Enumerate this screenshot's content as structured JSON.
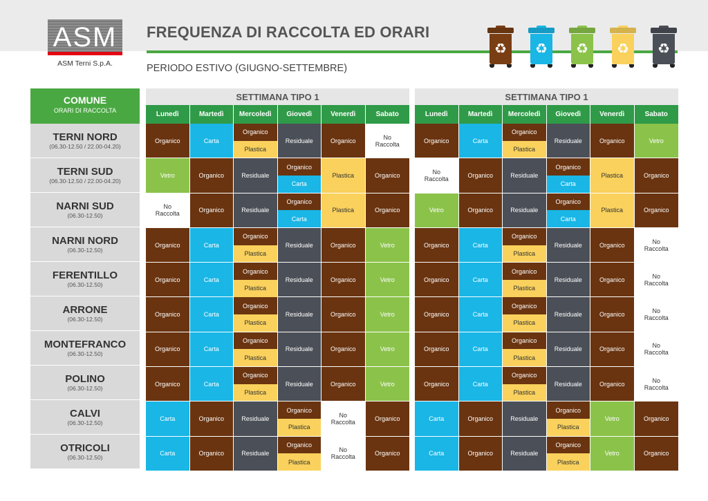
{
  "header": {
    "logo_text": "ASM",
    "company": "ASM Terni S.p.A.",
    "title": "FREQUENZA DI RACCOLTA ED ORARI",
    "subtitle": "PERIODO ESTIVO (GIUGNO-SETTEMBRE)"
  },
  "bins": [
    {
      "name": "organico",
      "color": "#7a3e14",
      "icon": "recycle-icon"
    },
    {
      "name": "carta",
      "color": "#19b6e6",
      "icon": "recycle-icon"
    },
    {
      "name": "vetro",
      "color": "#8bc34a",
      "icon": "recycle-icon"
    },
    {
      "name": "plastica",
      "color": "#f9d15c",
      "icon": "recycle-icon"
    },
    {
      "name": "residuale",
      "color": "#4b4f57",
      "icon": "recycle-icon"
    }
  ],
  "colors": {
    "Organico": "#6a3410",
    "Carta": "#19b6e6",
    "Residuale": "#4b4f57",
    "Plastica": "#f9d15c",
    "Vetro": "#8bc34a",
    "No Raccolta": "#ffffff",
    "header_green": "#4aa842",
    "day_green": "#2f9a48"
  },
  "comune_header": {
    "title": "COMUNE",
    "subtitle": "ORARI DI RACCOLTA"
  },
  "days": [
    "Lunedì",
    "Martedì",
    "Mercoledì",
    "Giovedì",
    "Venerdì",
    "Sabato"
  ],
  "weeks": [
    {
      "title": "SETTIMANA TIPO 1",
      "rows": [
        [
          [
            "Organico"
          ],
          [
            "Carta"
          ],
          [
            "Organico",
            "Plastica"
          ],
          [
            "Residuale"
          ],
          [
            "Organico"
          ],
          [
            "No Raccolta"
          ]
        ],
        [
          [
            "Vetro"
          ],
          [
            "Organico"
          ],
          [
            "Residuale"
          ],
          [
            "Organico",
            "Carta"
          ],
          [
            "Plastica"
          ],
          [
            "Organico"
          ]
        ],
        [
          [
            "No Raccolta"
          ],
          [
            "Organico"
          ],
          [
            "Residuale"
          ],
          [
            "Organico",
            "Carta"
          ],
          [
            "Plastica"
          ],
          [
            "Organico"
          ]
        ],
        [
          [
            "Organico"
          ],
          [
            "Carta"
          ],
          [
            "Organico",
            "Plastica"
          ],
          [
            "Residuale"
          ],
          [
            "Organico"
          ],
          [
            "Vetro"
          ]
        ],
        [
          [
            "Organico"
          ],
          [
            "Carta"
          ],
          [
            "Organico",
            "Plastica"
          ],
          [
            "Residuale"
          ],
          [
            "Organico"
          ],
          [
            "Vetro"
          ]
        ],
        [
          [
            "Organico"
          ],
          [
            "Carta"
          ],
          [
            "Organico",
            "Plastica"
          ],
          [
            "Residuale"
          ],
          [
            "Organico"
          ],
          [
            "Vetro"
          ]
        ],
        [
          [
            "Organico"
          ],
          [
            "Carta"
          ],
          [
            "Organico",
            "Plastica"
          ],
          [
            "Residuale"
          ],
          [
            "Organico"
          ],
          [
            "Vetro"
          ]
        ],
        [
          [
            "Organico"
          ],
          [
            "Carta"
          ],
          [
            "Organico",
            "Plastica"
          ],
          [
            "Residuale"
          ],
          [
            "Organico"
          ],
          [
            "Vetro"
          ]
        ],
        [
          [
            "Carta"
          ],
          [
            "Organico"
          ],
          [
            "Residuale"
          ],
          [
            "Organico",
            "Plastica"
          ],
          [
            "No Raccolta"
          ],
          [
            "Organico"
          ]
        ],
        [
          [
            "Carta"
          ],
          [
            "Organico"
          ],
          [
            "Residuale"
          ],
          [
            "Organico",
            "Plastica"
          ],
          [
            "No Raccolta"
          ],
          [
            "Organico"
          ]
        ]
      ]
    },
    {
      "title": "SETTIMANA TIPO 1",
      "rows": [
        [
          [
            "Organico"
          ],
          [
            "Carta"
          ],
          [
            "Organico",
            "Plastica"
          ],
          [
            "Residuale"
          ],
          [
            "Organico"
          ],
          [
            "Vetro"
          ]
        ],
        [
          [
            "No Raccolta"
          ],
          [
            "Organico"
          ],
          [
            "Residuale"
          ],
          [
            "Organico",
            "Carta"
          ],
          [
            "Plastica"
          ],
          [
            "Organico"
          ]
        ],
        [
          [
            "Vetro"
          ],
          [
            "Organico"
          ],
          [
            "Residuale"
          ],
          [
            "Organico",
            "Carta"
          ],
          [
            "Plastica"
          ],
          [
            "Organico"
          ]
        ],
        [
          [
            "Organico"
          ],
          [
            "Carta"
          ],
          [
            "Organico",
            "Plastica"
          ],
          [
            "Residuale"
          ],
          [
            "Organico"
          ],
          [
            "No Raccolta"
          ]
        ],
        [
          [
            "Organico"
          ],
          [
            "Carta"
          ],
          [
            "Organico",
            "Plastica"
          ],
          [
            "Residuale"
          ],
          [
            "Organico"
          ],
          [
            "No Raccolta"
          ]
        ],
        [
          [
            "Organico"
          ],
          [
            "Carta"
          ],
          [
            "Organico",
            "Plastica"
          ],
          [
            "Residuale"
          ],
          [
            "Organico"
          ],
          [
            "No Raccolta"
          ]
        ],
        [
          [
            "Organico"
          ],
          [
            "Carta"
          ],
          [
            "Organico",
            "Plastica"
          ],
          [
            "Residuale"
          ],
          [
            "Organico"
          ],
          [
            "No Raccolta"
          ]
        ],
        [
          [
            "Organico"
          ],
          [
            "Carta"
          ],
          [
            "Organico",
            "Plastica"
          ],
          [
            "Residuale"
          ],
          [
            "Organico"
          ],
          [
            "No Raccolta"
          ]
        ],
        [
          [
            "Carta"
          ],
          [
            "Organico"
          ],
          [
            "Residuale"
          ],
          [
            "Organico",
            "Plastica"
          ],
          [
            "Vetro"
          ],
          [
            "Organico"
          ]
        ],
        [
          [
            "Carta"
          ],
          [
            "Organico"
          ],
          [
            "Residuale"
          ],
          [
            "Organico",
            "Plastica"
          ],
          [
            "Vetro"
          ],
          [
            "Organico"
          ]
        ]
      ]
    }
  ],
  "comuni": [
    {
      "name": "TERNI NORD",
      "hours": "(06.30-12.50 / 22.00-04.20)"
    },
    {
      "name": "TERNI SUD",
      "hours": "(06.30-12.50 / 22.00-04.20)"
    },
    {
      "name": "NARNI SUD",
      "hours": "(06.30-12.50)"
    },
    {
      "name": "NARNI NORD",
      "hours": "(06.30-12.50)"
    },
    {
      "name": "FERENTILLO",
      "hours": "(06.30-12.50)"
    },
    {
      "name": "ARRONE",
      "hours": "(06.30-12.50)"
    },
    {
      "name": "MONTEFRANCO",
      "hours": "(06.30-12.50)"
    },
    {
      "name": "POLINO",
      "hours": "(06.30-12.50)"
    },
    {
      "name": "CALVI",
      "hours": "(06.30-12.50)"
    },
    {
      "name": "OTRICOLI",
      "hours": "(06.30-12.50)"
    }
  ]
}
